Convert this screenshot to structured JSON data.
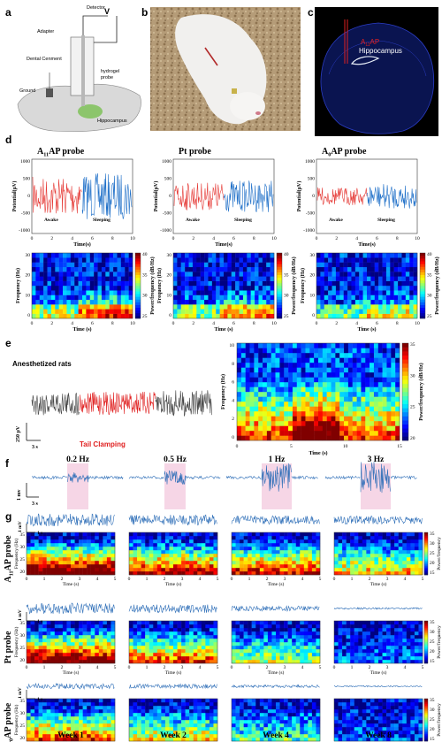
{
  "panels": {
    "a": "a",
    "b": "b",
    "c": "c",
    "d": "d",
    "e": "e",
    "f": "f",
    "g": "g"
  },
  "panel_a": {
    "detector": "Detector",
    "adapter": "Adapter",
    "dental": "Dental Cenment",
    "hydrogel": "hydrogel",
    "probe": "probe",
    "ground": "Ground",
    "hippocampus": "Hippocampus"
  },
  "panel_c": {
    "probe_main": "A",
    "probe_sub": "11",
    "probe_tail": "AP",
    "region": "Hippocampus"
  },
  "panel_d": {
    "probes": [
      {
        "main": "A",
        "sub": "11",
        "tail": "AP probe"
      },
      {
        "main": "",
        "sub": "",
        "tail": "Pt probe"
      },
      {
        "main": "A",
        "sub": "0",
        "tail": "AP probe"
      }
    ],
    "awake": "Awake",
    "sleeping": "Sleeping",
    "ylabel": "Potential(μV)",
    "xlabel": "Time(s)",
    "spec_ylabel": "Frequency (Hz)",
    "spec_xlabel": "Time (s)",
    "cb_label": "Power/frequency (dB/Hz)",
    "time_ticks": [
      "0",
      "2",
      "4",
      "6",
      "8",
      "10"
    ],
    "pot_ticks": [
      "1000",
      "500",
      "0",
      "-500",
      "-1000"
    ],
    "freq_ticks": [
      "30",
      "20",
      "10",
      "0"
    ],
    "cb_ticks": [
      "40",
      "35",
      "30",
      "25"
    ]
  },
  "panel_e": {
    "anesth": "Anesthetized rats",
    "clamp": "Tail Clamping",
    "scale_v": "250 μV",
    "scale_t": "3 s",
    "ylabel": "Frequency (Hz)",
    "xlabel": "Time (s)",
    "cb_label": "Power/frequency (dB/Hz)",
    "freq_ticks": [
      "10",
      "8",
      "6",
      "4",
      "2",
      "0"
    ],
    "time_ticks": [
      "0",
      "5",
      "10",
      "15"
    ],
    "cb_ticks": [
      "35",
      "30",
      "25",
      "20"
    ]
  },
  "panel_f": {
    "freqs": [
      "0.2  Hz",
      "0.5 Hz",
      "1 Hz",
      "3 Hz"
    ],
    "scale_v": "1 mv",
    "scale_t": "3 s"
  },
  "panel_g": {
    "rows": [
      {
        "main": "A",
        "sub": "11",
        "tail": "AP probe"
      },
      {
        "main": "",
        "sub": "",
        "tail": "Pt probe"
      },
      {
        "main": "A",
        "sub": "0",
        "tail": "AP probe"
      }
    ],
    "weeks": [
      "Week 1",
      "Week 2",
      "Week 4",
      "Week 8"
    ],
    "scale_v": "1 mV",
    "scale_t": "1 s",
    "ylabel": "Frequency (Hz)",
    "xlabel": "Time (s)",
    "cb_label": "Power/frequency",
    "time_ticks": [
      "0",
      "1",
      "2",
      "3",
      "4",
      "5"
    ],
    "freq_ticks": [
      "35",
      "30",
      "25",
      "20"
    ],
    "cb_ticks": [
      "35",
      "30",
      "25",
      "20",
      "15"
    ]
  },
  "colors": {
    "awake": "#e53935",
    "sleeping": "#1e6fc8",
    "trace_blue": "#2f6fb8",
    "highlight": "#f6d6e6",
    "clamp": "#e02020"
  }
}
